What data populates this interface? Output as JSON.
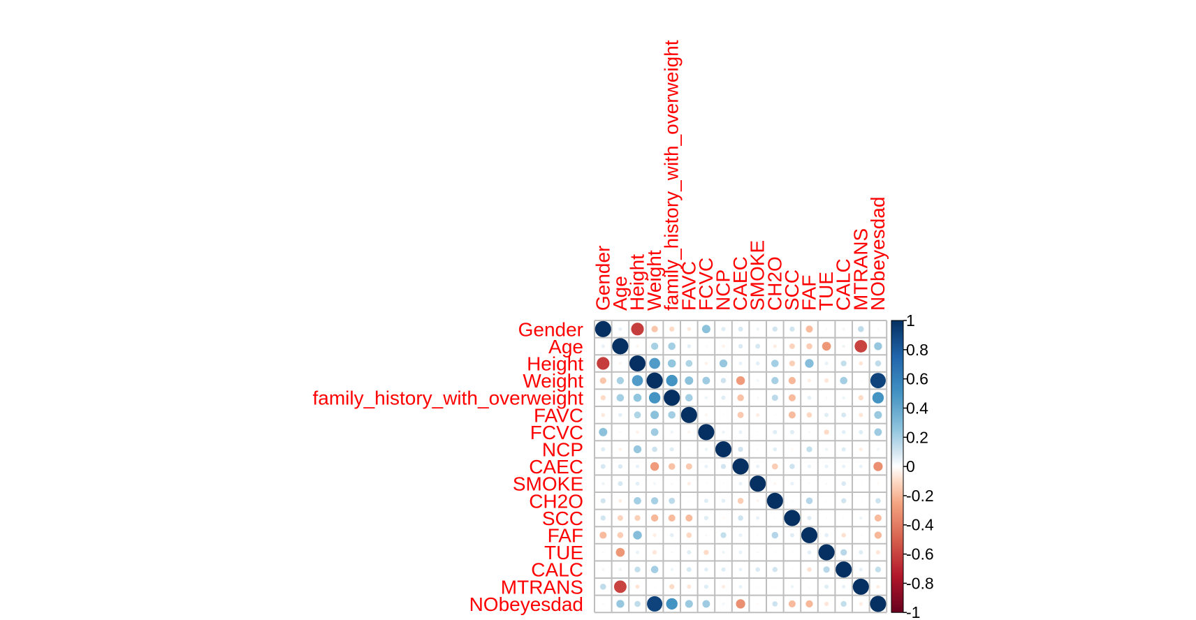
{
  "chart_data": {
    "type": "heatmap",
    "title": "",
    "xlabel": "",
    "ylabel": "",
    "variables": [
      "Gender",
      "Age",
      "Height",
      "Weight",
      "family_history_with_overweight",
      "FAVC",
      "FCVC",
      "NCP",
      "CAEC",
      "SMOKE",
      "CH2O",
      "SCC",
      "FAF",
      "TUE",
      "CALC",
      "MTRANS",
      "NObeyesdad"
    ],
    "matrix": [
      [
        1.0,
        0.05,
        -0.62,
        -0.16,
        -0.1,
        -0.06,
        0.27,
        0.07,
        0.09,
        0.04,
        0.1,
        0.1,
        -0.19,
        0.02,
        0.03,
        0.14,
        0.02
      ],
      [
        0.05,
        1.0,
        -0.03,
        0.2,
        0.21,
        0.06,
        0.02,
        -0.04,
        0.08,
        0.09,
        -0.05,
        -0.12,
        -0.14,
        -0.3,
        0.04,
        -0.6,
        0.24
      ],
      [
        -0.62,
        -0.03,
        1.0,
        0.46,
        0.25,
        0.18,
        -0.04,
        0.24,
        0.05,
        0.06,
        0.21,
        -0.13,
        0.29,
        0.05,
        0.13,
        -0.07,
        0.14
      ],
      [
        -0.16,
        0.2,
        0.46,
        1.0,
        0.5,
        0.27,
        0.22,
        0.11,
        -0.29,
        0.03,
        0.2,
        -0.2,
        -0.05,
        -0.07,
        0.21,
        0.01,
        0.91
      ],
      [
        -0.1,
        0.21,
        0.25,
        0.5,
        1.0,
        0.21,
        0.04,
        0.07,
        -0.17,
        0.02,
        0.15,
        -0.19,
        0.06,
        0.02,
        0.04,
        -0.1,
        0.5
      ],
      [
        -0.06,
        0.06,
        0.18,
        0.27,
        0.21,
        1.0,
        -0.03,
        -0.01,
        -0.15,
        -0.05,
        0.01,
        -0.19,
        -0.11,
        0.07,
        0.09,
        -0.07,
        0.23
      ],
      [
        0.27,
        0.02,
        -0.04,
        0.22,
        0.04,
        -0.03,
        1.0,
        0.04,
        0.05,
        0.01,
        0.07,
        0.07,
        0.02,
        -0.1,
        0.06,
        0.07,
        0.22
      ],
      [
        0.07,
        -0.04,
        0.24,
        0.11,
        0.07,
        -0.01,
        0.04,
        1.0,
        0.1,
        0.01,
        0.06,
        -0.02,
        0.13,
        0.04,
        0.07,
        -0.05,
        0.03
      ],
      [
        0.09,
        0.08,
        0.05,
        -0.29,
        -0.17,
        -0.15,
        0.05,
        0.1,
        1.0,
        0.05,
        -0.14,
        0.11,
        0.05,
        0.05,
        0.05,
        0.05,
        -0.33
      ],
      [
        0.04,
        0.09,
        0.06,
        0.03,
        0.02,
        -0.05,
        0.01,
        0.01,
        0.05,
        1.0,
        -0.03,
        0.05,
        0.01,
        0.02,
        0.08,
        -0.01,
        -0.02
      ],
      [
        0.1,
        -0.05,
        0.21,
        0.2,
        0.15,
        0.01,
        0.07,
        0.06,
        -0.14,
        -0.03,
        1.0,
        0.01,
        0.17,
        0.01,
        0.1,
        -0.01,
        0.11
      ],
      [
        0.1,
        -0.12,
        -0.13,
        -0.2,
        -0.19,
        -0.19,
        0.07,
        -0.02,
        0.11,
        0.05,
        0.01,
        1.0,
        0.07,
        -0.01,
        -0.01,
        0.04,
        -0.19
      ],
      [
        -0.19,
        -0.14,
        0.29,
        -0.05,
        0.06,
        -0.11,
        0.02,
        0.13,
        0.05,
        0.01,
        0.17,
        0.07,
        1.0,
        0.06,
        -0.08,
        0.01,
        -0.2
      ],
      [
        0.02,
        -0.3,
        0.05,
        -0.07,
        0.02,
        0.07,
        -0.1,
        0.04,
        0.05,
        0.02,
        0.01,
        -0.01,
        0.06,
        1.0,
        0.16,
        0.07,
        -0.07
      ],
      [
        0.03,
        0.04,
        0.13,
        0.21,
        0.04,
        0.09,
        0.06,
        0.07,
        0.05,
        0.08,
        0.1,
        -0.01,
        -0.08,
        0.16,
        1.0,
        0.05,
        0.13
      ],
      [
        0.14,
        -0.6,
        -0.07,
        0.01,
        -0.1,
        -0.07,
        0.07,
        -0.05,
        0.05,
        -0.01,
        -0.01,
        0.04,
        0.01,
        0.07,
        0.05,
        1.0,
        -0.05
      ],
      [
        0.02,
        0.24,
        0.14,
        0.91,
        0.5,
        0.23,
        0.22,
        0.03,
        -0.33,
        -0.02,
        0.11,
        -0.19,
        -0.2,
        -0.07,
        0.13,
        -0.05,
        1.0
      ]
    ],
    "colorbar": {
      "range": [
        -1,
        1
      ],
      "tick_labels": [
        "1",
        "0.8",
        "0.6",
        "0.4",
        "0.2",
        "0",
        "-0.2",
        "-0.4",
        "-0.6",
        "-0.8",
        "-1"
      ]
    },
    "colors": {
      "negative": "#67001f",
      "neutral": "#ffffff",
      "positive": "#053061",
      "label_color": "#ff0000",
      "grid": "#bebebe"
    }
  }
}
